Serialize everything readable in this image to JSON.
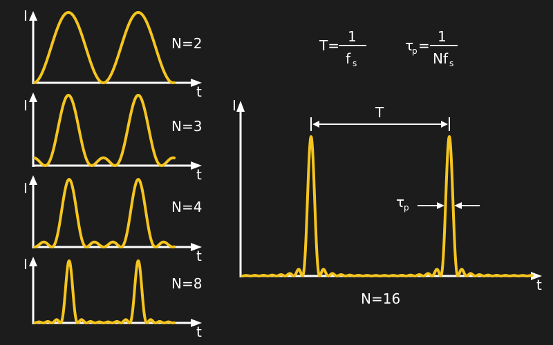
{
  "colors": {
    "background": "#1c1c1c",
    "curve": "#f5c51f",
    "axis": "#ffffff"
  },
  "axes": {
    "y_label": "I",
    "x_label": "t"
  },
  "panels": [
    {
      "label": "N=2",
      "N": 2
    },
    {
      "label": "N=3",
      "N": 3
    },
    {
      "label": "N=4",
      "N": 4
    },
    {
      "label": "N=8",
      "N": 8
    }
  ],
  "main": {
    "label": "N=16",
    "N": 16
  },
  "period_label": "T",
  "pulse_width_label": "τ",
  "pulse_width_sub": "p",
  "formulas": {
    "period": {
      "lhs": "T=",
      "num": "1",
      "den": "f",
      "den_sub": "s"
    },
    "pulse": {
      "lhs": "τ",
      "lhs_sub": "p",
      "eq": "=",
      "num": "1",
      "den": "Nf",
      "den_sub": "s"
    }
  }
}
